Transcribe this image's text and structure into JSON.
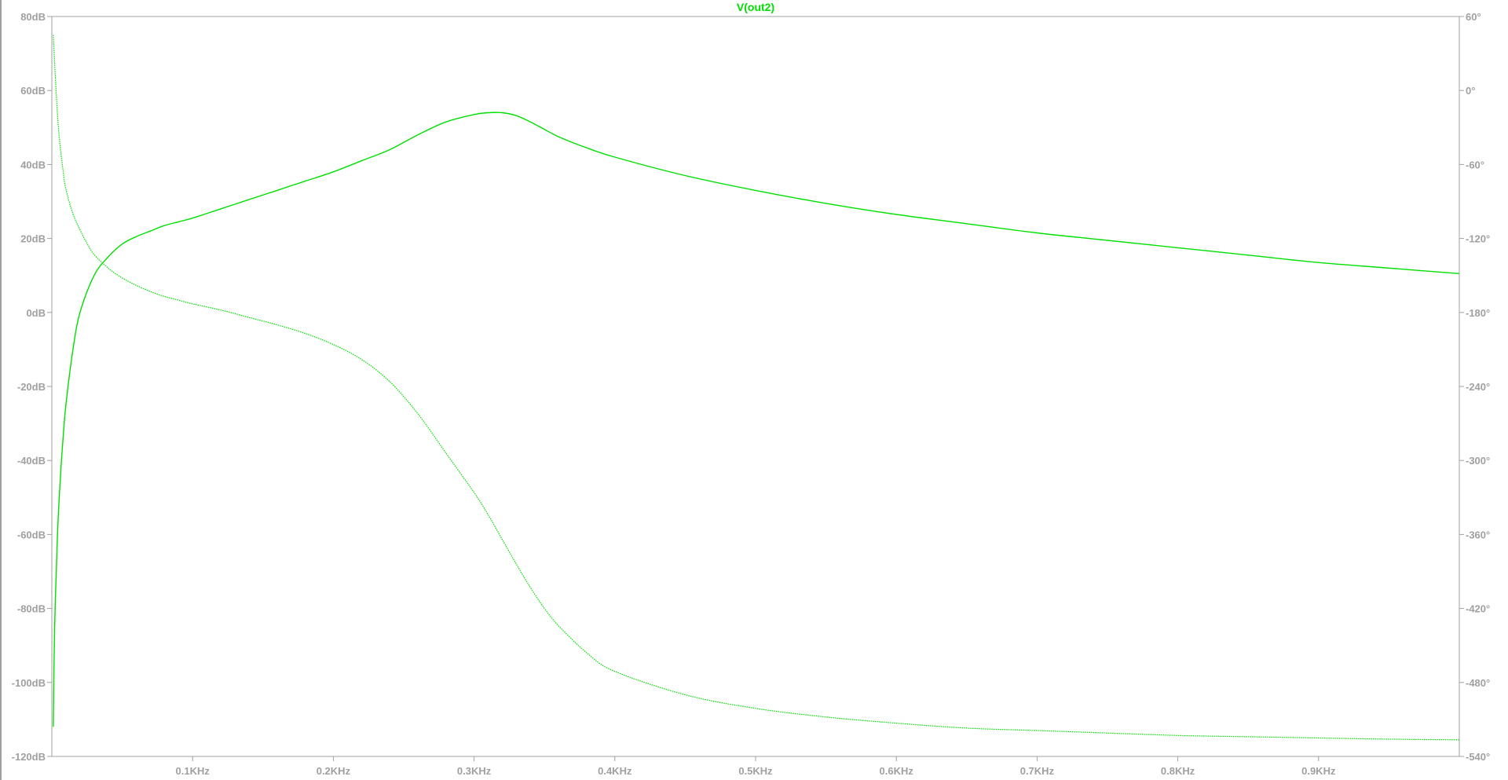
{
  "chart_data": {
    "type": "line",
    "title": "V(out2)",
    "x_unit": "Hz",
    "xlim": [
      0,
      1000
    ],
    "x_ticks": [
      {
        "value": 100,
        "label": "0.1KHz"
      },
      {
        "value": 200,
        "label": "0.2KHz"
      },
      {
        "value": 300,
        "label": "0.3KHz"
      },
      {
        "value": 400,
        "label": "0.4KHz"
      },
      {
        "value": 500,
        "label": "0.5KHz"
      },
      {
        "value": 600,
        "label": "0.6KHz"
      },
      {
        "value": 700,
        "label": "0.7KHz"
      },
      {
        "value": 800,
        "label": "0.8KHz"
      },
      {
        "value": 900,
        "label": "0.9KHz"
      }
    ],
    "y_left": {
      "unit": "dB",
      "ylim": [
        -120,
        80
      ],
      "ticks": [
        {
          "value": 80,
          "label": "80dB"
        },
        {
          "value": 60,
          "label": "60dB"
        },
        {
          "value": 40,
          "label": "40dB"
        },
        {
          "value": 20,
          "label": "20dB"
        },
        {
          "value": 0,
          "label": "0dB"
        },
        {
          "value": -20,
          "label": "-20dB"
        },
        {
          "value": -40,
          "label": "-40dB"
        },
        {
          "value": -60,
          "label": "-60dB"
        },
        {
          "value": -80,
          "label": "-80dB"
        },
        {
          "value": -100,
          "label": "-100dB"
        },
        {
          "value": -120,
          "label": "-120dB"
        }
      ]
    },
    "y_right": {
      "unit": "°",
      "ylim": [
        -540,
        60
      ],
      "ticks": [
        {
          "value": 60,
          "label": "60°"
        },
        {
          "value": 0,
          "label": "0°"
        },
        {
          "value": -60,
          "label": "-60°"
        },
        {
          "value": -120,
          "label": "-120°"
        },
        {
          "value": -180,
          "label": "-180°"
        },
        {
          "value": -240,
          "label": "-240°"
        },
        {
          "value": -300,
          "label": "-300°"
        },
        {
          "value": -360,
          "label": "-360°"
        },
        {
          "value": -420,
          "label": "-420°"
        },
        {
          "value": -480,
          "label": "-480°"
        },
        {
          "value": -540,
          "label": "-540°"
        }
      ]
    },
    "grid": false,
    "trace_color": "#00e000",
    "title_color": "#00e000",
    "axis_color": "#a0a0a0",
    "series": [
      {
        "axis": "left",
        "style": "solid",
        "x": [
          1,
          2,
          4,
          6,
          8,
          10,
          15,
          20,
          30,
          40,
          50,
          60,
          70,
          80,
          90,
          100,
          120,
          140,
          160,
          180,
          200,
          220,
          240,
          260,
          280,
          300,
          310,
          320,
          330,
          340,
          350,
          360,
          380,
          400,
          450,
          500,
          550,
          600,
          650,
          700,
          750,
          800,
          850,
          900,
          950,
          1000
        ],
        "values": [
          -112,
          -85,
          -60,
          -45,
          -34,
          -25,
          -10,
          0,
          10,
          15,
          18.5,
          20.5,
          22,
          23.5,
          24.5,
          25.5,
          28,
          30.5,
          33,
          35.5,
          38,
          41,
          44,
          48,
          51.5,
          53.5,
          54,
          54,
          53.2,
          51.5,
          49.5,
          47.5,
          44.5,
          42,
          37,
          33,
          29.5,
          26.5,
          24,
          21.5,
          19.5,
          17.5,
          15.5,
          13.5,
          12,
          10.5
        ]
      },
      {
        "axis": "right",
        "style": "dotted",
        "x": [
          1,
          3,
          5,
          8,
          10,
          15,
          20,
          25,
          30,
          40,
          50,
          60,
          70,
          80,
          90,
          100,
          120,
          140,
          160,
          180,
          200,
          220,
          240,
          260,
          280,
          300,
          310,
          320,
          330,
          340,
          350,
          360,
          380,
          400,
          450,
          500,
          550,
          600,
          650,
          700,
          750,
          800,
          850,
          900,
          950,
          1000
        ],
        "values": [
          45,
          0,
          -35,
          -65,
          -80,
          -100,
          -113,
          -124,
          -133,
          -144,
          -152,
          -158,
          -163,
          -167,
          -170,
          -173,
          -178,
          -184,
          -190,
          -197,
          -206,
          -218,
          -236,
          -262,
          -294,
          -326,
          -344,
          -364,
          -384,
          -403,
          -420,
          -434,
          -456,
          -471,
          -490,
          -501,
          -508,
          -513,
          -517,
          -519,
          -521,
          -523,
          -524,
          -525,
          -526,
          -526.5
        ]
      }
    ]
  }
}
